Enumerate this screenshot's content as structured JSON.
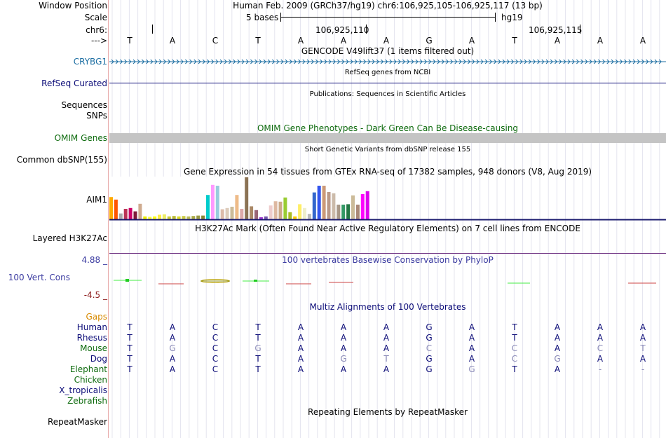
{
  "header": {
    "position_label": "Window Position",
    "scale_label": "Scale",
    "chrom_label": "chr6:",
    "strand_label": "--->",
    "assembly_title": "Human Feb. 2009 (GRCh37/hg19)   chr6:106,925,105-106,925,117 (13 bp)",
    "scale_text": "5 bases",
    "assembly_tag": "hg19",
    "coord_1": "106,925,110",
    "coord_2": "106,925,115",
    "bases": [
      "T",
      "A",
      "C",
      "T",
      "A",
      "A",
      "A",
      "G",
      "A",
      "T",
      "A",
      "A",
      "A"
    ]
  },
  "tracks": {
    "gencode": {
      "title": "GENCODE V49lift37 (1 items filtered out)",
      "item_label": "CRYBG1",
      "color": "#1c6ea2"
    },
    "refseq": {
      "title": "RefSeq genes from NCBI",
      "label": "RefSeq Curated",
      "color": "#0c0c78"
    },
    "publications": {
      "title": "Publications: Sequences in Scientific Articles",
      "label_1": "Sequences",
      "label_2": "SNPs"
    },
    "omim": {
      "title": "OMIM Gene Phenotypes - Dark Green Can Be Disease-causing",
      "label": "OMIM Genes",
      "color": "#0e6b0e"
    },
    "dbsnp": {
      "title": "Short Genetic Variants from dbSNP release 155",
      "label": "Common dbSNP(155)"
    },
    "gtex": {
      "title": "Gene Expression in 54 tissues from GTEx RNA-seq of 17382 samples, 948 donors (V8, Aug 2019)",
      "gene": "AIM1",
      "values": [
        0.53,
        0.47,
        0.14,
        0.25,
        0.27,
        0.19,
        0.37,
        0.07,
        0.06,
        0.07,
        0.11,
        0.12,
        0.07,
        0.08,
        0.07,
        0.08,
        0.07,
        0.08,
        0.09,
        0.09,
        0.58,
        0.82,
        0.8,
        0.24,
        0.27,
        0.3,
        0.58,
        0.25,
        1.0,
        0.31,
        0.22,
        0.05,
        0.07,
        0.33,
        0.43,
        0.42,
        0.52,
        0.17,
        0.07,
        0.36,
        0.27,
        0.13,
        0.64,
        0.8,
        0.8,
        0.65,
        0.62,
        0.35,
        0.35,
        0.36,
        0.57,
        0.35,
        0.6,
        0.67
      ],
      "colors": [
        "#ffaa00",
        "#ff5500",
        "#aaaaaa",
        "#bb3355",
        "#cc0066",
        "#7f1a3a",
        "#cfab8f",
        "#eeee00",
        "#ffff33",
        "#ffff11",
        "#ffee44",
        "#eeee66",
        "#cccc33",
        "#bbbb33",
        "#dddd22",
        "#cccc44",
        "#bbbb55",
        "#aaaa44",
        "#999944",
        "#888833",
        "#00cccc",
        "#ff99ff",
        "#99ccdd",
        "#ddbbaa",
        "#ddccbb",
        "#ccbb99",
        "#eebb88",
        "#ddaaaa",
        "#8b7355",
        "#aa8866",
        "#996677",
        "#9933cc",
        "#7755aa",
        "#eecccc",
        "#ddb8a0",
        "#ccaa88",
        "#99cc33",
        "#aabb22",
        "#ffcc00",
        "#ffee66",
        "#eeeecc",
        "#bbbbbb",
        "#3366cc",
        "#3355ee",
        "#cc9977",
        "#bb9988",
        "#ccbbaa",
        "#aa9988",
        "#339966",
        "#227744",
        "#ccbb99",
        "#aa8877",
        "#ff00ff",
        "#dd00ee"
      ]
    },
    "h3k27ac": {
      "title": "H3K27Ac Mark (Often Found Near Active Regulatory Elements) on 7 cell lines from ENCODE",
      "label": "Layered H3K27Ac",
      "color": "#6b2d80"
    },
    "phylop": {
      "title": "100 vertebrates Basewise Conservation by PhyloP",
      "label": "100 Vert. Cons",
      "max": "4.88 _",
      "min": "-4.5 _",
      "color": "#3a3aa0",
      "min_color": "#8b1a1a"
    },
    "multiz": {
      "title": "Multiz Alignments of 100 Vertebrates",
      "gaps_label": "Gaps",
      "gaps_color": "#d88a00",
      "species": [
        {
          "name": "Human",
          "color": "#0c0c78",
          "bases": [
            "T",
            "A",
            "C",
            "T",
            "A",
            "A",
            "A",
            "G",
            "A",
            "T",
            "A",
            "A",
            "A"
          ]
        },
        {
          "name": "Rhesus",
          "color": "#0c0c78",
          "bases": [
            "T",
            "A",
            "C",
            "T",
            "A",
            "A",
            "A",
            "G",
            "A",
            "T",
            "A",
            "A",
            "A"
          ]
        },
        {
          "name": "Mouse",
          "color": "#0e6b0e",
          "bases": [
            "T",
            "G",
            "C",
            "G",
            "A",
            "A",
            "A",
            "C",
            "A",
            "C",
            "A",
            "C",
            "T"
          ]
        },
        {
          "name": "Dog",
          "color": "#0c0c78",
          "bases": [
            "T",
            "A",
            "C",
            "T",
            "A",
            "G",
            "T",
            "G",
            "A",
            "C",
            "G",
            "A",
            "A"
          ]
        },
        {
          "name": "Elephant",
          "color": "#0e6b0e",
          "bases": [
            "T",
            "A",
            "C",
            "T",
            "A",
            "A",
            "A",
            "G",
            "G",
            "T",
            "A",
            "-",
            "-"
          ]
        },
        {
          "name": "Chicken",
          "color": "#0e6b0e",
          "bases": []
        },
        {
          "name": "X_tropicalis",
          "color": "#0c0c78",
          "bases": []
        },
        {
          "name": "Zebrafish",
          "color": "#0e6b0e",
          "bases": []
        }
      ]
    },
    "repeatmasker": {
      "title": "Repeating Elements by RepeatMasker",
      "label": "RepeatMasker"
    }
  }
}
